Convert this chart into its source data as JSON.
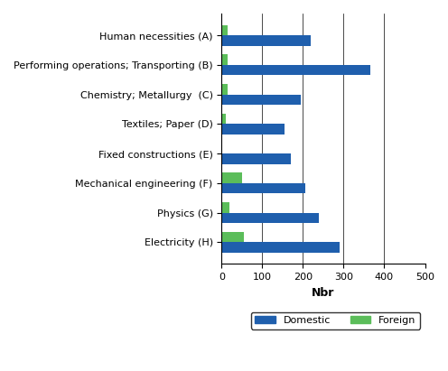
{
  "categories": [
    "Human necessities (A)",
    "Performing operations; Transporting (B)",
    "Chemistry; Metallurgy  (C)",
    "Textiles; Paper (D)",
    "Fixed constructions (E)",
    "Mechanical engineering (F)",
    "Physics (G)",
    "Electricity (H)"
  ],
  "domestic": [
    220,
    365,
    195,
    155,
    170,
    205,
    240,
    290
  ],
  "foreign": [
    15,
    15,
    15,
    10,
    0,
    50,
    20,
    55
  ],
  "domestic_color": "#1F5FAD",
  "foreign_color": "#5BBD5A",
  "xlabel": "Nbr",
  "xlim": [
    0,
    500
  ],
  "xticks": [
    0,
    100,
    200,
    300,
    400,
    500
  ],
  "legend_domestic": "Domestic",
  "legend_foreign": "Foreign",
  "bar_height": 0.35
}
